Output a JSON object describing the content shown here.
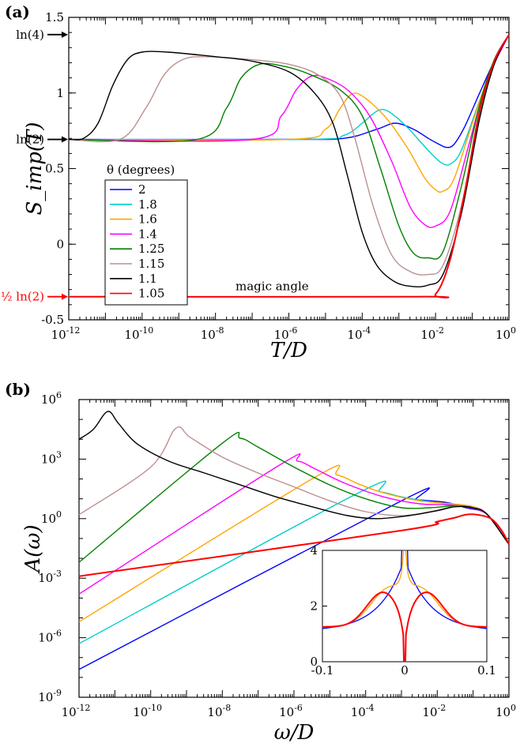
{
  "chart_data": [
    {
      "panel": "(a)",
      "type": "line",
      "xlabel": "T/D",
      "ylabel": "S_imp(T)",
      "xscale": "log",
      "xlim": [
        1e-12,
        1
      ],
      "ylim": [
        -0.5,
        1.5
      ],
      "x_ticks": [
        "10^-12",
        "10^-10",
        "10^-8",
        "10^-6",
        "10^-4",
        "10^-2",
        "10^0"
      ],
      "y_ticks": [
        "-0.5",
        "0",
        "0.5",
        "1",
        "1.5"
      ],
      "legend": {
        "title": "θ (degrees)",
        "position": "left",
        "entries": [
          "2",
          "1.8",
          "1.6",
          "1.4",
          "1.25",
          "1.15",
          "1.1",
          "1.05"
        ]
      },
      "annotations": {
        "ln4": "ln(4)",
        "ln2": "ln(2)",
        "neg_half_ln2": "−½ ln(2)",
        "magic": "magic angle"
      },
      "series": [
        {
          "name": "2",
          "color": "#0000ff",
          "points": [
            [
              -12,
              0.693
            ],
            [
              -6,
              0.693
            ],
            [
              -4.5,
              0.7
            ],
            [
              -3.6,
              0.76
            ],
            [
              -3.1,
              0.8
            ],
            [
              -2.6,
              0.76
            ],
            [
              -2.2,
              0.7
            ],
            [
              -1.9,
              0.66
            ],
            [
              -1.7,
              0.64
            ],
            [
              -1.5,
              0.66
            ],
            [
              -1.2,
              0.78
            ],
            [
              -0.8,
              1.0
            ],
            [
              -0.4,
              1.21
            ],
            [
              0,
              1.385
            ]
          ]
        },
        {
          "name": "1.8",
          "color": "#00cdcd",
          "points": [
            [
              -12,
              0.693
            ],
            [
              -5.5,
              0.693
            ],
            [
              -4.5,
              0.72
            ],
            [
              -4.0,
              0.8
            ],
            [
              -3.6,
              0.88
            ],
            [
              -3.3,
              0.88
            ],
            [
              -2.8,
              0.78
            ],
            [
              -2.2,
              0.62
            ],
            [
              -1.85,
              0.54
            ],
            [
              -1.6,
              0.53
            ],
            [
              -1.3,
              0.62
            ],
            [
              -0.8,
              0.95
            ],
            [
              -0.4,
              1.2
            ],
            [
              0,
              1.385
            ]
          ]
        },
        {
          "name": "1.6",
          "color": "#ffa500",
          "points": [
            [
              -12,
              0.693
            ],
            [
              -6,
              0.693
            ],
            [
              -5,
              0.76
            ],
            [
              -4.6,
              0.9
            ],
            [
              -4.3,
              0.99
            ],
            [
              -4.0,
              0.98
            ],
            [
              -3.4,
              0.85
            ],
            [
              -2.8,
              0.65
            ],
            [
              -2.3,
              0.44
            ],
            [
              -2.0,
              0.36
            ],
            [
              -1.8,
              0.35
            ],
            [
              -1.5,
              0.43
            ],
            [
              -1.0,
              0.8
            ],
            [
              -0.5,
              1.15
            ],
            [
              0,
              1.385
            ]
          ]
        },
        {
          "name": "1.4",
          "color": "#ff00ff",
          "points": [
            [
              -12,
              0.693
            ],
            [
              -7,
              0.693
            ],
            [
              -6.2,
              0.85
            ],
            [
              -5.8,
              1.02
            ],
            [
              -5.4,
              1.11
            ],
            [
              -5.0,
              1.1
            ],
            [
              -4.4,
              1.02
            ],
            [
              -3.8,
              0.85
            ],
            [
              -3.2,
              0.55
            ],
            [
              -2.7,
              0.25
            ],
            [
              -2.3,
              0.13
            ],
            [
              -2.0,
              0.12
            ],
            [
              -1.6,
              0.22
            ],
            [
              -1.1,
              0.65
            ],
            [
              -0.6,
              1.08
            ],
            [
              0,
              1.385
            ]
          ]
        },
        {
          "name": "1.25",
          "color": "#008000",
          "points": [
            [
              -12,
              0.693
            ],
            [
              -8.5,
              0.693
            ],
            [
              -7.7,
              0.9
            ],
            [
              -7.3,
              1.1
            ],
            [
              -6.8,
              1.19
            ],
            [
              -6.2,
              1.18
            ],
            [
              -5.5,
              1.13
            ],
            [
              -4.6,
              1.02
            ],
            [
              -4.0,
              0.85
            ],
            [
              -3.5,
              0.5
            ],
            [
              -3.0,
              0.12
            ],
            [
              -2.6,
              -0.06
            ],
            [
              -2.2,
              -0.09
            ],
            [
              -1.8,
              -0.05
            ],
            [
              -1.3,
              0.38
            ],
            [
              -0.8,
              0.92
            ],
            [
              -0.4,
              1.22
            ],
            [
              0,
              1.385
            ]
          ]
        },
        {
          "name": "1.15",
          "color": "#bc8f8f",
          "points": [
            [
              -12,
              0.693
            ],
            [
              -10.6,
              0.693
            ],
            [
              -9.9,
              0.9
            ],
            [
              -9.4,
              1.12
            ],
            [
              -8.9,
              1.22
            ],
            [
              -8.3,
              1.24
            ],
            [
              -7.0,
              1.22
            ],
            [
              -6.0,
              1.19
            ],
            [
              -5.2,
              1.12
            ],
            [
              -4.6,
              0.98
            ],
            [
              -4.2,
              0.7
            ],
            [
              -3.7,
              0.25
            ],
            [
              -3.2,
              -0.07
            ],
            [
              -2.7,
              -0.18
            ],
            [
              -2.2,
              -0.2
            ],
            [
              -1.8,
              -0.14
            ],
            [
              -1.3,
              0.25
            ],
            [
              -0.8,
              0.85
            ],
            [
              -0.4,
              1.2
            ],
            [
              0,
              1.385
            ]
          ]
        },
        {
          "name": "1.1",
          "color": "#000000",
          "points": [
            [
              -12,
              0.693
            ],
            [
              -11.6,
              0.7
            ],
            [
              -11.2,
              0.8
            ],
            [
              -10.8,
              1.05
            ],
            [
              -10.4,
              1.22
            ],
            [
              -10.0,
              1.27
            ],
            [
              -9.3,
              1.27
            ],
            [
              -8.0,
              1.24
            ],
            [
              -7.0,
              1.21
            ],
            [
              -6.0,
              1.14
            ],
            [
              -5.3,
              1.0
            ],
            [
              -4.8,
              0.8
            ],
            [
              -4.4,
              0.45
            ],
            [
              -4.0,
              0.08
            ],
            [
              -3.6,
              -0.14
            ],
            [
              -3.1,
              -0.25
            ],
            [
              -2.6,
              -0.28
            ],
            [
              -2.2,
              -0.27
            ],
            [
              -1.8,
              -0.2
            ],
            [
              -1.3,
              0.2
            ],
            [
              -0.8,
              0.83
            ],
            [
              -0.4,
              1.19
            ],
            [
              0,
              1.385
            ]
          ]
        },
        {
          "name": "1.05",
          "color": "#ff0000",
          "points": [
            [
              -12,
              -0.347
            ],
            [
              -2.5,
              -0.347
            ],
            [
              -2.0,
              -0.33
            ],
            [
              -1.6,
              -0.1
            ],
            [
              -1.2,
              0.35
            ],
            [
              -0.8,
              0.88
            ],
            [
              -0.4,
              1.21
            ],
            [
              0,
              1.385
            ]
          ]
        }
      ]
    },
    {
      "panel": "(b)",
      "type": "line",
      "xlabel": "ω/D",
      "ylabel": "A(ω)",
      "xscale": "log",
      "yscale": "log",
      "xlim": [
        1e-12,
        1
      ],
      "ylim": [
        1e-09,
        1000000.0
      ],
      "x_ticks": [
        "10^-12",
        "10^-10",
        "10^-8",
        "10^-6",
        "10^-4",
        "10^-2",
        "10^0"
      ],
      "y_ticks": [
        "10^-9",
        "10^-6",
        "10^-3",
        "10^0",
        "10^3",
        "10^6"
      ],
      "series": [
        {
          "name": "2",
          "color": "#0000ff",
          "log10_points": [
            [
              -12,
              -7.6
            ],
            [
              -3.0,
              0.9
            ],
            [
              -2.6,
              0.95
            ],
            [
              -2.2,
              0.9
            ],
            [
              -1.7,
              0.8
            ],
            [
              -1.2,
              0.55
            ],
            [
              -0.6,
              0.2
            ],
            [
              0,
              -1.3
            ]
          ]
        },
        {
          "name": "1.8",
          "color": "#00cdcd",
          "log10_points": [
            [
              -12,
              -6.3
            ],
            [
              -4.2,
              1.3
            ],
            [
              -3.6,
              1.35
            ],
            [
              -3.0,
              1.1
            ],
            [
              -2.2,
              0.85
            ],
            [
              -1.5,
              0.7
            ],
            [
              -1.0,
              0.55
            ],
            [
              -0.6,
              0.2
            ],
            [
              0,
              -1.3
            ]
          ]
        },
        {
          "name": "1.6",
          "color": "#ffa500",
          "log10_points": [
            [
              -12,
              -5.2
            ],
            [
              -5.4,
              2.1
            ],
            [
              -4.8,
              2.2
            ],
            [
              -4.2,
              1.75
            ],
            [
              -3.5,
              1.3
            ],
            [
              -2.5,
              0.9
            ],
            [
              -1.6,
              0.75
            ],
            [
              -1.0,
              0.6
            ],
            [
              -0.6,
              0.2
            ],
            [
              0,
              -1.3
            ]
          ]
        },
        {
          "name": "1.4",
          "color": "#ff00ff",
          "log10_points": [
            [
              -12,
              -3.8
            ],
            [
              -6.4,
              2.7
            ],
            [
              -5.9,
              2.9
            ],
            [
              -5.4,
              2.5
            ],
            [
              -4.6,
              1.8
            ],
            [
              -3.5,
              1.1
            ],
            [
              -2.5,
              0.75
            ],
            [
              -1.8,
              0.7
            ],
            [
              -1.2,
              0.6
            ],
            [
              -0.6,
              0.2
            ],
            [
              0,
              -1.3
            ]
          ]
        },
        {
          "name": "1.25",
          "color": "#008000",
          "log10_points": [
            [
              -12,
              -2.2
            ],
            [
              -8.0,
              3.8
            ],
            [
              -7.5,
              4.05
            ],
            [
              -7.0,
              3.6
            ],
            [
              -6.0,
              2.6
            ],
            [
              -5.0,
              1.7
            ],
            [
              -4.0,
              1.0
            ],
            [
              -3.0,
              0.55
            ],
            [
              -2.2,
              0.55
            ],
            [
              -1.5,
              0.65
            ],
            [
              -1.0,
              0.55
            ],
            [
              -0.6,
              0.2
            ],
            [
              0,
              -1.3
            ]
          ]
        },
        {
          "name": "1.15",
          "color": "#bc8f8f",
          "log10_points": [
            [
              -12,
              0.2
            ],
            [
              -10.0,
              2.6
            ],
            [
              -9.3,
              4.55
            ],
            [
              -8.9,
              4.1
            ],
            [
              -8.0,
              3.1
            ],
            [
              -7.0,
              2.3
            ],
            [
              -6.0,
              1.6
            ],
            [
              -5.0,
              0.9
            ],
            [
              -4.0,
              0.35
            ],
            [
              -3.0,
              0.15
            ],
            [
              -2.2,
              0.35
            ],
            [
              -1.5,
              0.62
            ],
            [
              -1.0,
              0.55
            ],
            [
              -0.6,
              0.2
            ],
            [
              0,
              -1.3
            ]
          ]
        },
        {
          "name": "1.1",
          "color": "#000000",
          "log10_points": [
            [
              -12,
              4.0
            ],
            [
              -11.6,
              4.5
            ],
            [
              -11.2,
              5.4
            ],
            [
              -10.9,
              4.8
            ],
            [
              -10.4,
              3.8
            ],
            [
              -9.5,
              2.9
            ],
            [
              -8.5,
              2.3
            ],
            [
              -7.5,
              1.7
            ],
            [
              -6.5,
              1.1
            ],
            [
              -5.5,
              0.6
            ],
            [
              -4.5,
              0.15
            ],
            [
              -3.7,
              0.0
            ],
            [
              -2.8,
              0.15
            ],
            [
              -2.0,
              0.4
            ],
            [
              -1.5,
              0.6
            ],
            [
              -1.0,
              0.55
            ],
            [
              -0.6,
              0.2
            ],
            [
              0,
              -1.3
            ]
          ]
        },
        {
          "name": "1.05",
          "color": "#ff0000",
          "log10_points": [
            [
              -12,
              -2.9
            ],
            [
              -3.0,
              -0.6
            ],
            [
              -2.0,
              -0.15
            ],
            [
              -1.5,
              0.05
            ],
            [
              -1.2,
              0.2
            ],
            [
              -0.9,
              0.2
            ],
            [
              -0.5,
              0.0
            ],
            [
              -0.2,
              -0.6
            ],
            [
              0,
              -1.3
            ]
          ]
        }
      ],
      "inset": {
        "xlim": [
          -0.1,
          0.1
        ],
        "ylim": [
          0,
          4
        ],
        "x_ticks": [
          "-0.1",
          "0",
          "0.1"
        ],
        "y_ticks": [
          "0",
          "2",
          "4"
        ],
        "series": [
          {
            "name": "2",
            "color": "#0000ff",
            "curve": "dip"
          },
          {
            "name": "1.6",
            "color": "#ffa500",
            "curve": "peak"
          },
          {
            "name": "1.05",
            "color": "#ff0000",
            "curve": "dip-shoulders"
          }
        ]
      }
    }
  ]
}
